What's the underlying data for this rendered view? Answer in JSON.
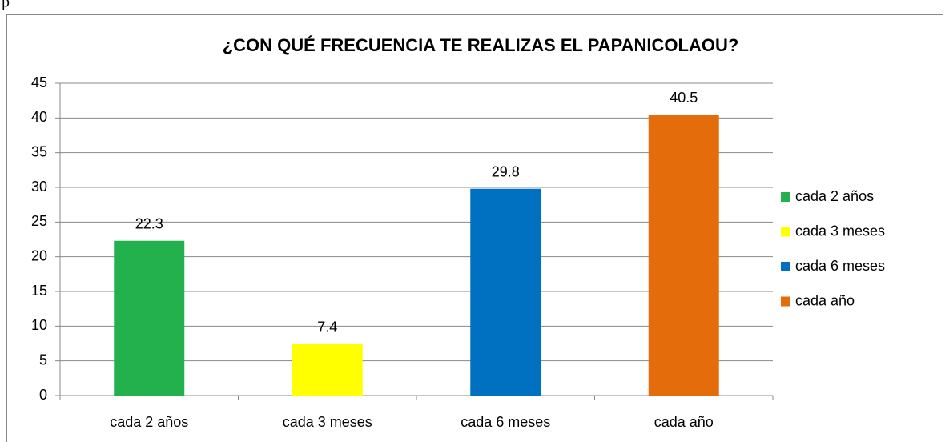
{
  "fragment": "p",
  "chart_data": {
    "type": "bar",
    "title": "¿CON QUÉ FRECUENCIA TE REALIZAS EL PAPANICOLAOU?",
    "categories": [
      "cada 2 años",
      "cada 3 meses",
      "cada 6 meses",
      "cada año"
    ],
    "values": [
      22.3,
      7.4,
      29.8,
      40.5
    ],
    "colors": [
      "#22b14c",
      "#ffff00",
      "#0070c0",
      "#e46c0a"
    ],
    "ylim": [
      0,
      45
    ],
    "yticks": [
      0,
      5,
      10,
      15,
      20,
      25,
      30,
      35,
      40,
      45
    ],
    "grid": true,
    "legend": "right"
  }
}
